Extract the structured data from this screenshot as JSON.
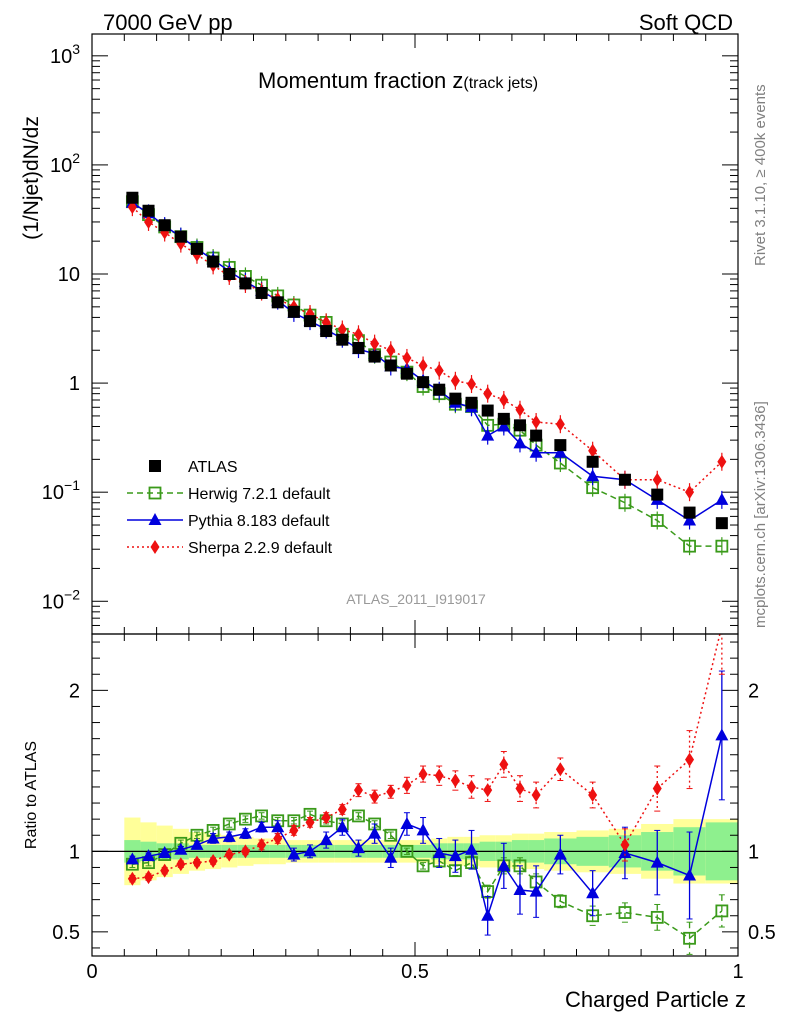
{
  "header": {
    "left": "7000 GeV pp",
    "right": "Soft QCD"
  },
  "side_labels": {
    "rivet": "Rivet 3.1.10, ≥ 400k events",
    "mcplots": "mcplots.cern.ch [arXiv:1306.3436]"
  },
  "chart_data": {
    "type": "scatter",
    "title_main": "Momentum fraction z",
    "title_sub": "(track jets)",
    "analysis_id": "ATLAS_2011_I919017",
    "xlabel": "Charged Particle z",
    "ylabel_main": "(1/Njet)dN/dz",
    "ylabel_ratio": "Ratio to ATLAS",
    "xlim": [
      0,
      1
    ],
    "ylim_main_log10": [
      -2.3,
      3.2
    ],
    "ylim_ratio": [
      0.35,
      2.35
    ],
    "x_ticks": [
      {
        "v": 0,
        "label": "0"
      },
      {
        "v": 0.5,
        "label": "0.5"
      },
      {
        "v": 1,
        "label": "1"
      }
    ],
    "y_ticks_main": [
      {
        "v": 3,
        "label_base": "10",
        "label_exp": "3"
      },
      {
        "v": 2,
        "label_base": "10",
        "label_exp": "2"
      },
      {
        "v": 1,
        "label_base": "10",
        "label_exp": ""
      },
      {
        "v": 0,
        "label_base": "1",
        "label_exp": ""
      },
      {
        "v": -1,
        "label_base": "10",
        "label_exp": "−1"
      },
      {
        "v": -2,
        "label_base": "10",
        "label_exp": "−2"
      }
    ],
    "y_ticks_ratio": [
      {
        "v": 2,
        "label": "2"
      },
      {
        "v": 1,
        "label": "1"
      },
      {
        "v": 0.5,
        "label": "0.5"
      }
    ],
    "x": [
      0.0625,
      0.0875,
      0.1125,
      0.1375,
      0.1625,
      0.1875,
      0.2125,
      0.2375,
      0.2625,
      0.2875,
      0.3125,
      0.3375,
      0.3625,
      0.3875,
      0.4125,
      0.4375,
      0.4625,
      0.4875,
      0.5125,
      0.5375,
      0.5625,
      0.5875,
      0.6125,
      0.6375,
      0.6625,
      0.6875,
      0.725,
      0.775,
      0.825,
      0.875,
      0.925,
      0.975
    ],
    "series": [
      {
        "name": "ATLAS",
        "style": "data",
        "marker": "square",
        "color": "#000000",
        "values": [
          50,
          38,
          28,
          22,
          17,
          13,
          10,
          8.2,
          6.7,
          5.5,
          4.5,
          3.7,
          3.0,
          2.5,
          2.1,
          1.75,
          1.45,
          1.22,
          1.02,
          0.87,
          0.72,
          0.66,
          0.56,
          0.47,
          0.41,
          0.33,
          0.27,
          0.19,
          0.13,
          0.095,
          0.065,
          0.052
        ],
        "ratios": [],
        "ratio_errors": []
      },
      {
        "name": "Herwig 7.2.1 default",
        "style": "dashed",
        "marker": "open-square",
        "color": "#3a9a1a",
        "values": [
          46,
          35,
          27,
          22,
          17.5,
          14,
          11.5,
          9.5,
          7.9,
          6.3,
          5.2,
          4.2,
          3.6,
          2.8,
          2.45,
          1.82,
          1.56,
          1.26,
          0.93,
          0.8,
          0.64,
          0.61,
          0.41,
          0.42,
          0.37,
          0.27,
          0.185,
          0.11,
          0.08,
          0.055,
          0.032,
          0.032
        ],
        "ratios": [
          0.92,
          0.93,
          0.98,
          1.05,
          1.1,
          1.13,
          1.17,
          1.2,
          1.22,
          1.19,
          1.19,
          1.23,
          1.19,
          1.17,
          1.22,
          1.17,
          1.1,
          1.0,
          0.91,
          0.94,
          0.88,
          0.93,
          0.75,
          0.91,
          0.91,
          0.81,
          0.69,
          0.6,
          0.62,
          0.59,
          0.46,
          0.63
        ],
        "ratio_errors": [
          0.02,
          0.02,
          0.02,
          0.02,
          0.02,
          0.02,
          0.02,
          0.02,
          0.02,
          0.02,
          0.02,
          0.02,
          0.02,
          0.02,
          0.02,
          0.02,
          0.02,
          0.02,
          0.02,
          0.03,
          0.03,
          0.04,
          0.04,
          0.05,
          0.05,
          0.05,
          0.04,
          0.06,
          0.06,
          0.08,
          0.1,
          0.1
        ]
      },
      {
        "name": "Pythia 8.183 default",
        "style": "solid",
        "marker": "triangle",
        "color": "#0000dd",
        "values": [
          45,
          36,
          27.5,
          22,
          17,
          13.5,
          10.6,
          8.5,
          7.0,
          5.7,
          4.4,
          3.7,
          3.1,
          2.55,
          2.05,
          1.85,
          1.42,
          1.35,
          1.05,
          0.85,
          0.66,
          0.6,
          0.33,
          0.4,
          0.28,
          0.23,
          0.23,
          0.14,
          0.13,
          0.085,
          0.055,
          0.085
        ],
        "ratios": [
          0.95,
          0.97,
          0.99,
          1.01,
          1.04,
          1.08,
          1.09,
          1.11,
          1.15,
          1.15,
          0.98,
          1.0,
          1.07,
          1.15,
          1.02,
          1.11,
          0.96,
          1.17,
          1.13,
          0.99,
          0.97,
          1.01,
          0.6,
          0.91,
          0.76,
          0.75,
          0.98,
          0.74,
          0.99,
          0.93,
          0.85,
          1.72
        ],
        "ratio_errors": [
          0.02,
          0.02,
          0.02,
          0.02,
          0.02,
          0.03,
          0.03,
          0.03,
          0.03,
          0.04,
          0.04,
          0.04,
          0.05,
          0.05,
          0.05,
          0.06,
          0.06,
          0.07,
          0.08,
          0.09,
          0.1,
          0.12,
          0.12,
          0.14,
          0.15,
          0.16,
          0.12,
          0.14,
          0.16,
          0.2,
          0.27,
          0.4
        ]
      },
      {
        "name": "Sherpa 2.2.9 default",
        "style": "dotted",
        "marker": "diamond",
        "color": "#ee1111",
        "values": [
          41,
          30,
          24,
          19,
          15,
          12,
          9.6,
          8.1,
          6.9,
          5.9,
          5.0,
          4.3,
          3.6,
          3.1,
          2.8,
          2.3,
          2.0,
          1.7,
          1.45,
          1.3,
          1.05,
          0.98,
          0.8,
          0.7,
          0.57,
          0.44,
          0.42,
          0.24,
          0.13,
          0.13,
          0.1,
          0.19
        ],
        "ratios": [
          0.83,
          0.84,
          0.88,
          0.92,
          0.93,
          0.94,
          0.98,
          1.0,
          1.04,
          1.08,
          1.13,
          1.18,
          1.21,
          1.26,
          1.38,
          1.34,
          1.37,
          1.41,
          1.48,
          1.47,
          1.44,
          1.4,
          1.38,
          1.54,
          1.39,
          1.35,
          1.51,
          1.35,
          1.04,
          1.39,
          1.57,
          2.4
        ],
        "ratio_errors": [
          0.02,
          0.02,
          0.02,
          0.02,
          0.02,
          0.02,
          0.02,
          0.02,
          0.03,
          0.03,
          0.03,
          0.03,
          0.03,
          0.03,
          0.04,
          0.04,
          0.04,
          0.05,
          0.05,
          0.06,
          0.06,
          0.07,
          0.07,
          0.08,
          0.08,
          0.08,
          0.07,
          0.08,
          0.1,
          0.14,
          0.18,
          0.3
        ]
      }
    ],
    "uncertainty_bands": {
      "x_edges": [
        0.05,
        0.075,
        0.1,
        0.125,
        0.15,
        0.175,
        0.2,
        0.225,
        0.25,
        0.275,
        0.3,
        0.325,
        0.35,
        0.375,
        0.4,
        0.425,
        0.45,
        0.475,
        0.5,
        0.525,
        0.55,
        0.575,
        0.6,
        0.625,
        0.65,
        0.675,
        0.7,
        0.75,
        0.8,
        0.85,
        0.9,
        0.95,
        1.0
      ],
      "stat_half_width": [
        0.07,
        0.06,
        0.05,
        0.05,
        0.04,
        0.04,
        0.04,
        0.04,
        0.04,
        0.04,
        0.04,
        0.04,
        0.04,
        0.04,
        0.04,
        0.04,
        0.04,
        0.04,
        0.04,
        0.05,
        0.05,
        0.05,
        0.06,
        0.06,
        0.07,
        0.07,
        0.08,
        0.09,
        0.1,
        0.12,
        0.15,
        0.18
      ],
      "total_half_width": [
        0.21,
        0.18,
        0.16,
        0.14,
        0.12,
        0.11,
        0.1,
        0.09,
        0.08,
        0.08,
        0.07,
        0.07,
        0.07,
        0.07,
        0.07,
        0.07,
        0.07,
        0.07,
        0.07,
        0.08,
        0.09,
        0.09,
        0.1,
        0.1,
        0.11,
        0.11,
        0.12,
        0.13,
        0.14,
        0.17,
        0.2,
        0.2
      ],
      "colors": {
        "stat": "#8ef08e",
        "total": "#ffff99"
      }
    }
  }
}
